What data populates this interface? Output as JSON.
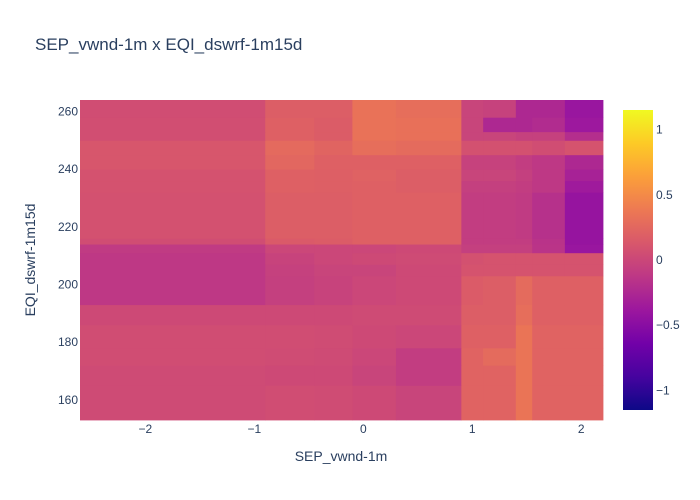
{
  "chart_data": {
    "type": "heatmap",
    "title": "SEP_vwnd-1m x EQI_dswrf-1m15d",
    "xlabel": "SEP_vwnd-1m",
    "ylabel": "EQI_dswrf-1m15d",
    "xlim": [
      -2.6,
      2.2
    ],
    "ylim": [
      153,
      264
    ],
    "xticks": [
      -2,
      -1,
      0,
      1,
      2
    ],
    "xtick_labels": [
      "−2",
      "−1",
      "0",
      "1",
      "2"
    ],
    "yticks": [
      160,
      180,
      200,
      220,
      240,
      260
    ],
    "ytick_labels": [
      "160",
      "180",
      "200",
      "220",
      "240",
      "260"
    ],
    "colorscale": "plasma",
    "colorbar": {
      "range": [
        -1.15,
        1.15
      ],
      "ticks": [
        1,
        0.5,
        0,
        -0.5,
        -1
      ],
      "tick_labels": [
        "1",
        "0.5",
        "0",
        "−0.5",
        "−1"
      ]
    },
    "x_edges": [
      -2.6,
      -0.9,
      -0.45,
      -0.1,
      0.3,
      0.9,
      1.1,
      1.4,
      1.55,
      1.85,
      2.2
    ],
    "y_edges": [
      153,
      165,
      172,
      178,
      186,
      193,
      203,
      207,
      211,
      214,
      216,
      232,
      236,
      240,
      245,
      250,
      253,
      258,
      264
    ],
    "z": [
      [
        0.03,
        0.05,
        0.04,
        0.02,
        -0.02,
        0.22,
        0.22,
        0.35,
        0.22,
        0.22
      ],
      [
        0.03,
        0.02,
        0.02,
        -0.02,
        -0.08,
        0.22,
        0.22,
        0.35,
        0.22,
        0.22
      ],
      [
        0.05,
        0.04,
        0.03,
        0.0,
        -0.08,
        0.22,
        0.28,
        0.35,
        0.22,
        0.22
      ],
      [
        0.05,
        0.05,
        0.04,
        0.02,
        0.0,
        0.2,
        0.2,
        0.35,
        0.22,
        0.22
      ],
      [
        0.02,
        0.02,
        0.02,
        0.03,
        0.03,
        0.18,
        0.18,
        0.3,
        0.2,
        0.2
      ],
      [
        -0.12,
        -0.06,
        -0.03,
        0.0,
        0.02,
        0.16,
        0.18,
        0.28,
        0.2,
        0.2
      ],
      [
        -0.12,
        -0.05,
        -0.02,
        -0.02,
        0.02,
        0.1,
        0.1,
        0.1,
        0.1,
        0.1
      ],
      [
        -0.12,
        -0.03,
        0.0,
        0.02,
        0.03,
        0.08,
        0.1,
        0.1,
        0.1,
        0.1
      ],
      [
        -0.1,
        0.0,
        0.0,
        0.0,
        0.02,
        -0.06,
        -0.06,
        -0.06,
        -0.15,
        -0.4
      ],
      [
        0.05,
        0.15,
        0.17,
        0.2,
        0.2,
        -0.08,
        -0.08,
        -0.08,
        -0.16,
        -0.42
      ],
      [
        0.08,
        0.18,
        0.18,
        0.2,
        0.2,
        -0.08,
        -0.08,
        -0.1,
        -0.18,
        -0.42
      ],
      [
        0.09,
        0.2,
        0.19,
        0.2,
        0.18,
        -0.06,
        -0.06,
        -0.08,
        -0.12,
        -0.36
      ],
      [
        0.09,
        0.2,
        0.19,
        0.21,
        0.18,
        -0.02,
        -0.02,
        -0.06,
        -0.12,
        -0.3
      ],
      [
        0.12,
        0.25,
        0.2,
        0.2,
        0.2,
        -0.04,
        -0.04,
        -0.08,
        -0.12,
        -0.25
      ],
      [
        0.12,
        0.27,
        0.23,
        0.3,
        0.28,
        0.08,
        0.08,
        0.08,
        0.05,
        0.1
      ],
      [
        0.06,
        0.2,
        0.17,
        0.33,
        0.32,
        -0.02,
        -0.02,
        -0.05,
        -0.05,
        -0.2
      ],
      [
        0.06,
        0.2,
        0.17,
        0.33,
        0.32,
        -0.02,
        -0.25,
        -0.25,
        -0.22,
        -0.38
      ],
      [
        0.05,
        0.18,
        0.18,
        0.33,
        0.3,
        -0.02,
        -0.04,
        -0.25,
        -0.25,
        -0.4
      ]
    ]
  }
}
